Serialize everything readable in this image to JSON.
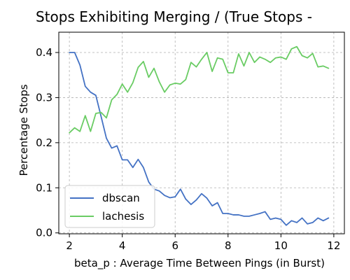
{
  "chart_data": {
    "type": "line",
    "title": "Stops Exhibiting Merging / (True Stops - ",
    "xlabel": "beta_p : Average Time Between Pings (in Burst)",
    "ylabel": "Percentage Stops",
    "xlim": [
      1.6,
      12.4
    ],
    "ylim": [
      -0.002,
      0.445
    ],
    "xticks": [
      2,
      4,
      6,
      8,
      10,
      12
    ],
    "xtick_labels": [
      "2",
      "4",
      "6",
      "8",
      "10",
      "12"
    ],
    "yticks": [
      0.0,
      0.1,
      0.2,
      0.3,
      0.4
    ],
    "ytick_labels": [
      "0.0",
      "0.1",
      "0.2",
      "0.3",
      "0.4"
    ],
    "grid": true,
    "legend_position": "bottom-left",
    "series": [
      {
        "name": "dbscan",
        "color": "#4472c4",
        "x": [
          2.0,
          2.2,
          2.4,
          2.6,
          2.8,
          3.0,
          3.2,
          3.4,
          3.6,
          3.8,
          4.0,
          4.2,
          4.4,
          4.6,
          4.8,
          5.0,
          5.2,
          5.4,
          5.6,
          5.8,
          6.0,
          6.2,
          6.4,
          6.6,
          6.8,
          7.0,
          7.2,
          7.4,
          7.6,
          7.8,
          8.0,
          8.2,
          8.4,
          8.6,
          8.8,
          9.0,
          9.2,
          9.4,
          9.6,
          9.8,
          10.0,
          10.2,
          10.4,
          10.6,
          10.8,
          11.0,
          11.2,
          11.4,
          11.6,
          11.8
        ],
        "y": [
          0.4,
          0.4,
          0.372,
          0.325,
          0.312,
          0.305,
          0.258,
          0.21,
          0.188,
          0.193,
          0.162,
          0.162,
          0.145,
          0.163,
          0.145,
          0.113,
          0.097,
          0.093,
          0.083,
          0.078,
          0.08,
          0.097,
          0.075,
          0.063,
          0.073,
          0.087,
          0.077,
          0.06,
          0.067,
          0.043,
          0.043,
          0.04,
          0.04,
          0.037,
          0.037,
          0.04,
          0.043,
          0.047,
          0.03,
          0.033,
          0.03,
          0.017,
          0.027,
          0.023,
          0.033,
          0.02,
          0.023,
          0.033,
          0.027,
          0.033
        ]
      },
      {
        "name": "lachesis",
        "color": "#6acc64",
        "x": [
          2.0,
          2.2,
          2.4,
          2.6,
          2.8,
          3.0,
          3.2,
          3.4,
          3.6,
          3.8,
          4.0,
          4.2,
          4.4,
          4.6,
          4.8,
          5.0,
          5.2,
          5.4,
          5.6,
          5.8,
          6.0,
          6.2,
          6.4,
          6.6,
          6.8,
          7.0,
          7.2,
          7.4,
          7.6,
          7.8,
          8.0,
          8.2,
          8.4,
          8.6,
          8.8,
          9.0,
          9.2,
          9.4,
          9.6,
          9.8,
          10.0,
          10.2,
          10.4,
          10.6,
          10.8,
          11.0,
          11.2,
          11.4,
          11.6,
          11.8
        ],
        "y": [
          0.222,
          0.233,
          0.225,
          0.26,
          0.225,
          0.265,
          0.267,
          0.255,
          0.295,
          0.307,
          0.33,
          0.312,
          0.333,
          0.367,
          0.38,
          0.345,
          0.365,
          0.335,
          0.312,
          0.328,
          0.332,
          0.33,
          0.34,
          0.378,
          0.368,
          0.385,
          0.4,
          0.358,
          0.388,
          0.385,
          0.355,
          0.355,
          0.397,
          0.37,
          0.4,
          0.378,
          0.39,
          0.385,
          0.378,
          0.388,
          0.39,
          0.385,
          0.408,
          0.413,
          0.393,
          0.388,
          0.398,
          0.368,
          0.37,
          0.365
        ]
      }
    ]
  }
}
